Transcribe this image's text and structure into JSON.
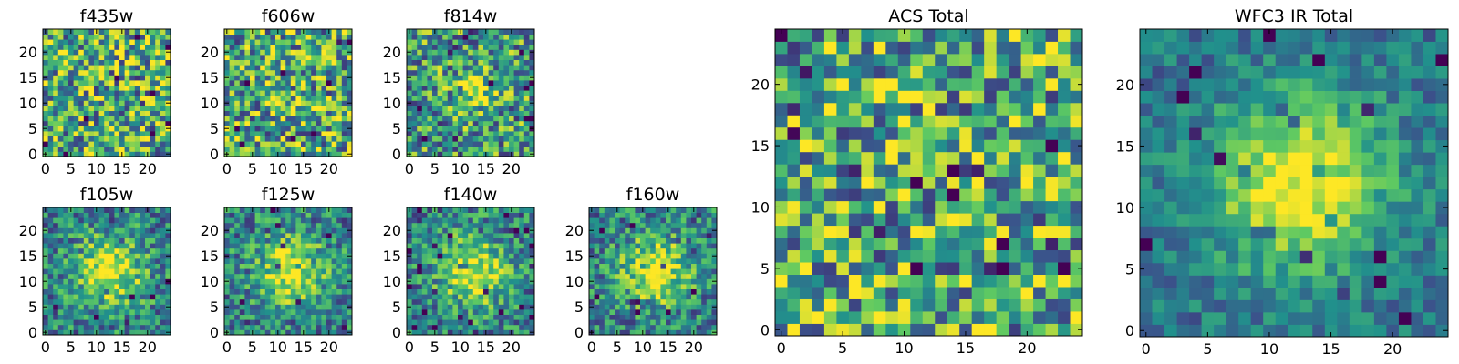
{
  "figure": {
    "background": "#ffffff"
  },
  "colormap": {
    "name": "viridis",
    "stops": [
      "#440154",
      "#3b528b",
      "#21918c",
      "#5ec962",
      "#fde725"
    ]
  },
  "chart_data": [
    {
      "type": "heatmap",
      "title": "f435w",
      "grid_size": 25,
      "field": "uniform-noise",
      "xticks": [
        "0",
        "5",
        "10",
        "15",
        "20"
      ],
      "yticks": [
        "0",
        "5",
        "10",
        "15",
        "20"
      ],
      "xlim": [
        -0.5,
        24.5
      ],
      "ylim": [
        -0.5,
        24.5
      ]
    },
    {
      "type": "heatmap",
      "title": "f606w",
      "grid_size": 25,
      "field": "uniform-noise",
      "xticks": [
        "0",
        "5",
        "10",
        "15",
        "20"
      ],
      "yticks": [
        "0",
        "5",
        "10",
        "15",
        "20"
      ],
      "xlim": [
        -0.5,
        24.5
      ],
      "ylim": [
        -0.5,
        24.5
      ]
    },
    {
      "type": "heatmap",
      "title": "f814w",
      "grid_size": 25,
      "field": "faint-central-source",
      "xticks": [
        "0",
        "5",
        "10",
        "15",
        "20"
      ],
      "yticks": [
        "0",
        "5",
        "10",
        "15",
        "20"
      ],
      "xlim": [
        -0.5,
        24.5
      ],
      "ylim": [
        -0.5,
        24.5
      ]
    },
    {
      "type": "heatmap",
      "title": "f105w",
      "grid_size": 25,
      "field": "central-source",
      "xticks": [
        "0",
        "5",
        "10",
        "15",
        "20"
      ],
      "yticks": [
        "0",
        "5",
        "10",
        "15",
        "20"
      ],
      "xlim": [
        -0.5,
        24.5
      ],
      "ylim": [
        -0.5,
        24.5
      ]
    },
    {
      "type": "heatmap",
      "title": "f125w",
      "grid_size": 25,
      "field": "central-source",
      "xticks": [
        "0",
        "5",
        "10",
        "15",
        "20"
      ],
      "yticks": [
        "0",
        "5",
        "10",
        "15",
        "20"
      ],
      "xlim": [
        -0.5,
        24.5
      ],
      "ylim": [
        -0.5,
        24.5
      ]
    },
    {
      "type": "heatmap",
      "title": "f140w",
      "grid_size": 25,
      "field": "central-source",
      "xticks": [
        "0",
        "5",
        "10",
        "15",
        "20"
      ],
      "yticks": [
        "0",
        "5",
        "10",
        "15",
        "20"
      ],
      "xlim": [
        -0.5,
        24.5
      ],
      "ylim": [
        -0.5,
        24.5
      ]
    },
    {
      "type": "heatmap",
      "title": "f160w",
      "grid_size": 25,
      "field": "central-source",
      "xticks": [
        "0",
        "5",
        "10",
        "15",
        "20"
      ],
      "yticks": [
        "0",
        "5",
        "10",
        "15",
        "20"
      ],
      "xlim": [
        -0.5,
        24.5
      ],
      "ylim": [
        -0.5,
        24.5
      ]
    },
    {
      "type": "heatmap",
      "title": "ACS Total",
      "grid_size": 25,
      "field": "uniform-noise",
      "xticks": [
        "0",
        "5",
        "10",
        "15",
        "20"
      ],
      "yticks": [
        "0",
        "5",
        "10",
        "15",
        "20"
      ],
      "xlim": [
        -0.5,
        24.5
      ],
      "ylim": [
        -0.5,
        24.5
      ]
    },
    {
      "type": "heatmap",
      "title": "WFC3 IR Total",
      "grid_size": 25,
      "field": "bright-central-source",
      "xticks": [
        "0",
        "5",
        "10",
        "15",
        "20"
      ],
      "yticks": [
        "0",
        "5",
        "10",
        "15",
        "20"
      ],
      "xlim": [
        -0.5,
        24.5
      ],
      "ylim": [
        -0.5,
        24.5
      ]
    }
  ]
}
